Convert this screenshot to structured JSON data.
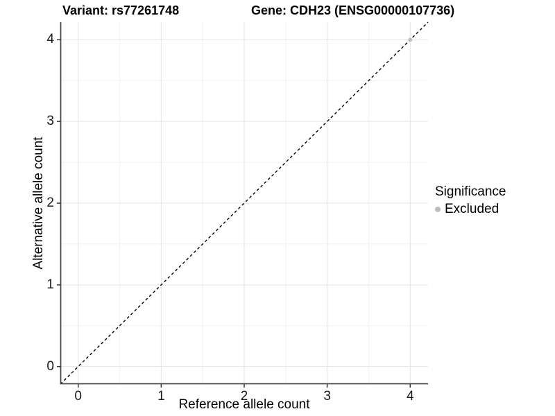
{
  "figure": {
    "title_left": "Variant: rs77261748",
    "title_right": "Gene: CDH23 (ENSG00000107736)"
  },
  "chart_data": {
    "type": "scatter",
    "xlabel": "Reference allele count",
    "ylabel": "Alternative allele count",
    "xlim": [
      -0.215,
      4.215
    ],
    "ylim": [
      -0.215,
      4.215
    ],
    "xticks": [
      0,
      1,
      2,
      3,
      4
    ],
    "yticks": [
      0,
      1,
      2,
      3,
      4
    ],
    "minor_xticks": [
      0.5,
      1.5,
      2.5,
      3.5
    ],
    "minor_yticks": [
      0.5,
      1.5,
      2.5,
      3.5
    ],
    "grid": "major+minor",
    "identity_line": {
      "slope": 1,
      "intercept": 0,
      "style": "dashed",
      "color": "#000000"
    },
    "series": [
      {
        "name": "Excluded",
        "color": "#bdbdbd",
        "points": [
          [
            4,
            4
          ]
        ]
      }
    ],
    "legend": {
      "title": "Significance",
      "position": "right",
      "entries": [
        {
          "label": "Excluded",
          "color": "#bdbdbd"
        }
      ]
    },
    "colors": {
      "background": "#ffffff",
      "grid_major": "#e3e3e3",
      "grid_minor": "#f1f1f1",
      "axis_line": "#474747",
      "tick_mark": "#333333",
      "point": "#bdbdbd"
    }
  }
}
